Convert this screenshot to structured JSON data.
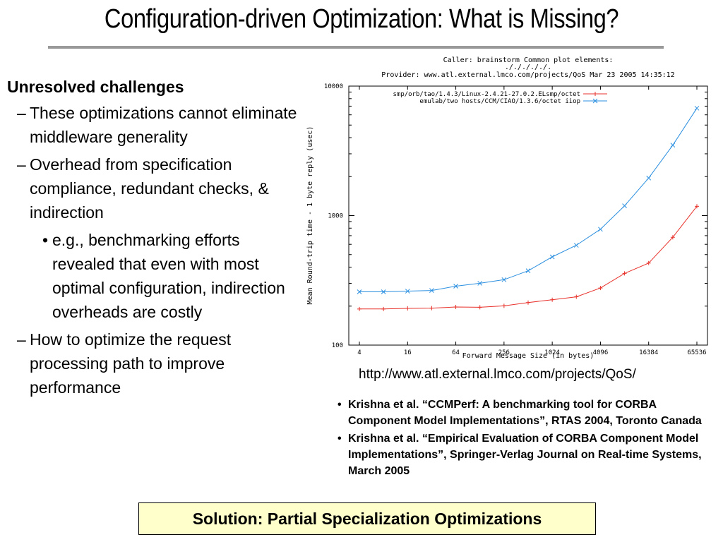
{
  "slide": {
    "title": "Configuration-driven Optimization: What is Missing?",
    "heading": "Unresolved challenges",
    "bullets": [
      "These optimizations cannot eliminate middleware generality",
      "Overhead from specification compliance, redundant checks, & indirection",
      "How to optimize the request processing path to improve performance"
    ],
    "sub_bullet": "e.g., benchmarking efforts revealed that even with most optimal configuration, indirection overheads are costly",
    "dash": "–",
    "bullet_dot": "•",
    "url": "http://www.atl.external.lmco.com/projects/QoS/",
    "references": [
      "Krishna et al. “CCMPerf: A benchmarking tool for CORBA Component Model Implementations”, RTAS 2004, Toronto Canada",
      "Krishna et al. “Empirical Evaluation of CORBA Component Model Implementations”, Springer-Verlag Journal on Real-time Systems, March 2005"
    ],
    "solution": "Solution: Partial Specialization Optimizations"
  },
  "colors": {
    "title_rule": "#999999",
    "solution_bg": "#ffffcc",
    "series_tao": "#e8322b",
    "series_ciao": "#2b8fe0"
  },
  "chart_data": {
    "type": "line",
    "header": [
      "Caller: brainstorm   Common plot elements:",
      "./././././.",
      "Provider: www.atl.external.lmco.com/projects/QoS  Mar 23 2005 14:35:12"
    ],
    "xlabel": "Forward Message Size (in bytes)",
    "ylabel": "Mean Round-trip time - 1 byte reply (usec)",
    "x_scale": "log2",
    "y_scale": "log10",
    "xlim": [
      4,
      65536
    ],
    "ylim": [
      100,
      10000
    ],
    "x_ticks": [
      "4",
      "16",
      "64",
      "256",
      "1024",
      "4096",
      "16384",
      "65536"
    ],
    "y_ticks": [
      "100",
      "1000",
      "10000"
    ],
    "x": [
      4,
      8,
      16,
      32,
      64,
      128,
      256,
      512,
      1024,
      2048,
      4096,
      8192,
      16384,
      32768,
      65536
    ],
    "series": [
      {
        "name": "smp/orb/tao/1.4.3/Linux-2.4.21-27.0.2.ELsmp/octet",
        "color": "#e8322b",
        "marker": "+",
        "values": [
          190,
          190,
          192,
          193,
          197,
          196,
          201,
          213,
          224,
          236,
          276,
          358,
          430,
          680,
          1180
        ]
      },
      {
        "name": "emulab/two hosts/CCM/CIAO/1.3.6/octet iiop",
        "color": "#2b8fe0",
        "marker": "x",
        "values": [
          258,
          258,
          261,
          264,
          285,
          300,
          320,
          375,
          480,
          590,
          785,
          1190,
          1950,
          3500,
          6750
        ]
      }
    ]
  }
}
